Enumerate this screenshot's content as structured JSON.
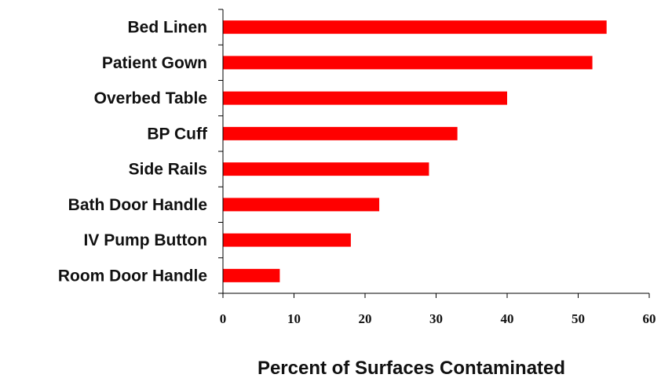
{
  "chart_data": {
    "type": "bar",
    "orientation": "horizontal",
    "categories": [
      "Bed Linen",
      "Patient Gown",
      "Overbed Table",
      "BP Cuff",
      "Side Rails",
      "Bath Door Handle",
      "IV Pump Button",
      "Room Door Handle"
    ],
    "values": [
      54,
      52,
      40,
      33,
      29,
      22,
      18,
      8
    ],
    "xlabel": "Percent of Surfaces Contaminated",
    "ylabel": "",
    "xlim": [
      0,
      60
    ],
    "xticks": [
      "0",
      "10",
      "20",
      "30",
      "40",
      "50",
      "60"
    ],
    "grid": false,
    "bar_color": "#ff0000"
  }
}
